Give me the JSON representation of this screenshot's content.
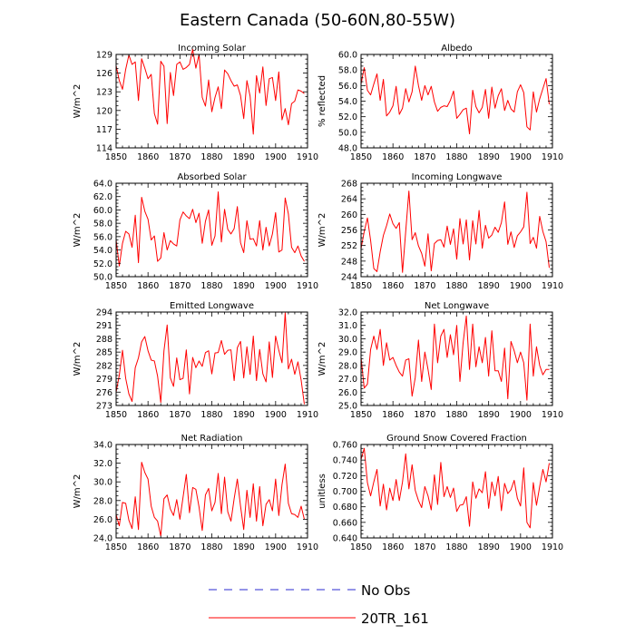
{
  "figure_title": "Eastern Canada (50-60N,80-55W)",
  "colors": {
    "model": "#ff0000",
    "obs": "#2a2ad0",
    "axis": "#000000"
  },
  "legend": [
    {
      "label": "No Obs",
      "style": "dashed",
      "color": "#2a2ad0"
    },
    {
      "label": "20TR_161",
      "style": "solid",
      "color": "#ff0000"
    }
  ],
  "chart_data": [
    {
      "type": "line",
      "title": "Incoming Solar",
      "ylabel": "W/m^2",
      "xlabel": "",
      "xlim": [
        1850,
        1910
      ],
      "ylim": [
        114,
        129
      ],
      "xticks": [
        1850,
        1860,
        1870,
        1880,
        1890,
        1900,
        1910
      ],
      "yticks": [
        114,
        117,
        120,
        123,
        126,
        129
      ],
      "ytick_labels": [
        "114",
        "117",
        "120",
        "123",
        "126",
        "129"
      ],
      "series": [
        {
          "name": "20TR_161",
          "x_start": 1850,
          "values": [
            127.2,
            124.8,
            123.4,
            126.6,
            128.9,
            127.4,
            127.8,
            121.6,
            128.3,
            126.8,
            125.1,
            125.8,
            119.5,
            117.8,
            127.9,
            127.1,
            117.9,
            126.1,
            122.4,
            127.4,
            127.8,
            126.6,
            126.9,
            127.4,
            129.8,
            126.8,
            129.0,
            122.1,
            120.7,
            124.9,
            119.8,
            122.1,
            123.8,
            120.3,
            126.5,
            125.9,
            124.8,
            123.9,
            124.1,
            122.4,
            118.7,
            124.8,
            122.3,
            116.2,
            125.6,
            122.8,
            127.0,
            120.8,
            125.1,
            125.3,
            121.6,
            126.2,
            118.5,
            120.3,
            117.7,
            121.1,
            121.5,
            123.3,
            123.1,
            122.7
          ]
        }
      ]
    },
    {
      "type": "line",
      "title": "Albedo",
      "ylabel": "% reflected",
      "xlabel": "",
      "xlim": [
        1850,
        1910
      ],
      "ylim": [
        48.0,
        60.0
      ],
      "xticks": [
        1850,
        1860,
        1870,
        1880,
        1890,
        1900,
        1910
      ],
      "yticks": [
        48,
        50,
        52,
        54,
        56,
        58,
        60
      ],
      "ytick_labels": [
        "48.0",
        "50.0",
        "52.0",
        "54.0",
        "56.0",
        "58.0",
        "60.0"
      ],
      "series": [
        {
          "name": "20TR_161",
          "x_start": 1850,
          "values": [
            56.2,
            58.3,
            55.4,
            54.8,
            56.2,
            57.5,
            54.1,
            56.8,
            52.1,
            52.6,
            53.4,
            55.9,
            52.3,
            53.1,
            55.6,
            53.9,
            55.2,
            58.5,
            56.0,
            54.1,
            56.0,
            54.8,
            55.9,
            53.9,
            52.7,
            53.2,
            53.4,
            53.3,
            54.1,
            55.3,
            51.8,
            52.3,
            52.9,
            53.1,
            49.8,
            55.4,
            53.3,
            52.5,
            53.2,
            55.5,
            51.8,
            55.8,
            53.1,
            54.7,
            55.6,
            52.8,
            54.1,
            53.0,
            52.6,
            55.2,
            56.1,
            55.1,
            50.7,
            50.3,
            55.2,
            52.6,
            54.3,
            55.6,
            56.9,
            53.6
          ]
        }
      ]
    },
    {
      "type": "line",
      "title": "Absorbed Solar",
      "ylabel": "W/m^2",
      "xlabel": "",
      "xlim": [
        1850,
        1910
      ],
      "ylim": [
        50.0,
        64.0
      ],
      "xticks": [
        1850,
        1860,
        1870,
        1880,
        1890,
        1900,
        1910
      ],
      "yticks": [
        50,
        52,
        54,
        56,
        58,
        60,
        62,
        64
      ],
      "ytick_labels": [
        "50.0",
        "52.0",
        "54.0",
        "56.0",
        "58.0",
        "60.0",
        "62.0",
        "64.0"
      ],
      "series": [
        {
          "name": "20TR_161",
          "x_start": 1850,
          "values": [
            55.5,
            51.6,
            55.0,
            56.8,
            56.4,
            54.4,
            59.2,
            52.1,
            61.9,
            59.8,
            58.6,
            55.5,
            56.1,
            52.3,
            52.8,
            56.6,
            54.0,
            55.4,
            54.9,
            54.6,
            58.5,
            59.7,
            59.1,
            58.7,
            60.1,
            58.1,
            59.5,
            55.0,
            58.3,
            60.0,
            54.7,
            56.1,
            62.7,
            55.2,
            60.1,
            57.1,
            56.4,
            57.2,
            60.5,
            55.1,
            53.6,
            58.4,
            55.6,
            55.7,
            54.6,
            58.4,
            54.0,
            57.4,
            54.6,
            56.4,
            59.6,
            53.7,
            54.0,
            61.8,
            59.4,
            54.4,
            53.6,
            54.6,
            53.1,
            52.3
          ]
        }
      ]
    },
    {
      "type": "line",
      "title": "Incoming Longwave",
      "ylabel": "W/m^2",
      "xlabel": "",
      "xlim": [
        1850,
        1910
      ],
      "ylim": [
        244,
        268
      ],
      "xticks": [
        1850,
        1860,
        1870,
        1880,
        1890,
        1900,
        1910
      ],
      "yticks": [
        244,
        248,
        252,
        256,
        260,
        264,
        268
      ],
      "ytick_labels": [
        "244",
        "248",
        "252",
        "256",
        "260",
        "264",
        "268"
      ],
      "series": [
        {
          "name": "20TR_161",
          "x_start": 1850,
          "values": [
            251.2,
            255.6,
            259.1,
            253.3,
            246.1,
            245.3,
            250.4,
            254.6,
            257.1,
            260.1,
            257.6,
            256.4,
            257.9,
            245.1,
            255.6,
            266.0,
            253.5,
            255.3,
            251.9,
            250.0,
            246.7,
            255.0,
            245.5,
            252.5,
            253.3,
            253.5,
            251.6,
            257.0,
            252.3,
            256.3,
            248.5,
            258.9,
            252.4,
            258.6,
            248.3,
            258.4,
            252.4,
            261.0,
            251.3,
            257.2,
            253.9,
            254.7,
            256.7,
            255.4,
            257.9,
            263.2,
            252.3,
            255.5,
            251.5,
            254.5,
            255.5,
            256.8,
            265.7,
            252.5,
            254.1,
            251.3,
            259.5,
            255.6,
            253.0,
            246.3
          ]
        }
      ]
    },
    {
      "type": "line",
      "title": "Emitted Longwave",
      "ylabel": "W/m^2",
      "xlabel": "",
      "xlim": [
        1850,
        1910
      ],
      "ylim": [
        273,
        294
      ],
      "xticks": [
        1850,
        1860,
        1870,
        1880,
        1890,
        1900,
        1910
      ],
      "yticks": [
        273,
        276,
        279,
        282,
        285,
        288,
        291,
        294
      ],
      "ytick_labels": [
        "273",
        "276",
        "279",
        "282",
        "285",
        "288",
        "291",
        "294"
      ],
      "series": [
        {
          "name": "20TR_161",
          "x_start": 1850,
          "values": [
            276.0,
            279.8,
            285.4,
            279.1,
            275.6,
            273.9,
            281.5,
            283.7,
            287.3,
            288.5,
            285.3,
            283.2,
            283.0,
            279.6,
            273.7,
            285.3,
            291.1,
            279.2,
            277.3,
            283.7,
            278.8,
            279.1,
            285.5,
            275.6,
            283.8,
            281.5,
            283.0,
            281.8,
            284.9,
            285.3,
            280.1,
            284.8,
            284.9,
            287.6,
            284.5,
            285.4,
            285.5,
            278.6,
            286.0,
            287.4,
            279.2,
            286.2,
            280.0,
            288.6,
            278.6,
            285.6,
            280.1,
            278.3,
            287.3,
            279.3,
            288.6,
            285.4,
            282.6,
            293.8,
            281.2,
            283.4,
            280.0,
            282.8,
            278.7,
            273.3
          ]
        }
      ]
    },
    {
      "type": "line",
      "title": "Net Longwave",
      "ylabel": "W/m^2",
      "xlabel": "",
      "xlim": [
        1850,
        1910
      ],
      "ylim": [
        25.0,
        32.0
      ],
      "xticks": [
        1850,
        1860,
        1870,
        1880,
        1890,
        1900,
        1910
      ],
      "yticks": [
        25,
        26,
        27,
        28,
        29,
        30,
        31,
        32
      ],
      "ytick_labels": [
        "25.0",
        "26.0",
        "27.0",
        "28.0",
        "29.0",
        "30.0",
        "31.0",
        "32.0"
      ],
      "series": [
        {
          "name": "20TR_161",
          "x_start": 1850,
          "values": [
            28.6,
            26.3,
            26.6,
            29.2,
            30.2,
            29.2,
            30.7,
            28.0,
            29.7,
            28.4,
            28.6,
            28.0,
            27.5,
            27.2,
            28.4,
            28.5,
            25.7,
            27.1,
            29.9,
            26.8,
            29.0,
            27.7,
            26.2,
            31.1,
            28.2,
            30.2,
            30.7,
            28.6,
            30.3,
            28.8,
            31.0,
            26.8,
            29.7,
            31.7,
            27.7,
            31.1,
            27.9,
            29.4,
            28.2,
            30.1,
            27.2,
            30.6,
            27.6,
            27.6,
            26.8,
            29.3,
            25.5,
            29.8,
            29.1,
            28.2,
            29.0,
            28.2,
            25.4,
            31.1,
            27.2,
            29.4,
            28.0,
            27.3,
            27.7,
            27.7
          ]
        }
      ]
    },
    {
      "type": "line",
      "title": "Net Radiation",
      "ylabel": "W/m^2",
      "xlabel": "",
      "xlim": [
        1850,
        1910
      ],
      "ylim": [
        24.0,
        34.0
      ],
      "xticks": [
        1850,
        1860,
        1870,
        1880,
        1890,
        1900,
        1910
      ],
      "yticks": [
        24,
        26,
        28,
        30,
        32,
        34
      ],
      "ytick_labels": [
        "24.0",
        "26.0",
        "28.0",
        "30.0",
        "32.0",
        "34.0"
      ],
      "series": [
        {
          "name": "20TR_161",
          "x_start": 1850,
          "values": [
            26.5,
            25.3,
            27.8,
            27.7,
            25.9,
            25.0,
            28.4,
            24.9,
            32.1,
            31.0,
            30.3,
            27.4,
            26.2,
            25.8,
            24.2,
            28.2,
            28.6,
            27.1,
            26.4,
            28.1,
            26.0,
            28.4,
            30.8,
            26.7,
            29.4,
            29.2,
            27.3,
            24.8,
            28.6,
            29.3,
            26.9,
            27.8,
            30.9,
            26.6,
            30.5,
            26.8,
            25.8,
            28.2,
            30.3,
            27.4,
            24.9,
            29.1,
            26.2,
            29.8,
            25.8,
            29.5,
            25.3,
            27.6,
            28.1,
            26.9,
            30.3,
            26.4,
            29.7,
            31.9,
            27.7,
            26.6,
            26.5,
            26.2,
            27.4,
            26.0
          ]
        }
      ]
    },
    {
      "type": "line",
      "title": "Ground Snow Covered Fraction",
      "ylabel": "unitless",
      "xlabel": "",
      "xlim": [
        1850,
        1910
      ],
      "ylim": [
        0.64,
        0.76
      ],
      "xticks": [
        1850,
        1860,
        1870,
        1880,
        1890,
        1900,
        1910
      ],
      "yticks": [
        0.64,
        0.66,
        0.68,
        0.7,
        0.72,
        0.74,
        0.76
      ],
      "ytick_labels": [
        "0.640",
        "0.660",
        "0.680",
        "0.700",
        "0.720",
        "0.740",
        "0.760"
      ],
      "series": [
        {
          "name": "20TR_161",
          "x_start": 1850,
          "values": [
            0.741,
            0.755,
            0.711,
            0.694,
            0.712,
            0.728,
            0.681,
            0.709,
            0.676,
            0.704,
            0.688,
            0.715,
            0.688,
            0.712,
            0.748,
            0.703,
            0.734,
            0.701,
            0.688,
            0.679,
            0.706,
            0.694,
            0.676,
            0.721,
            0.683,
            0.737,
            0.693,
            0.706,
            0.692,
            0.704,
            0.674,
            0.682,
            0.683,
            0.693,
            0.655,
            0.712,
            0.691,
            0.703,
            0.698,
            0.725,
            0.678,
            0.712,
            0.694,
            0.719,
            0.675,
            0.71,
            0.697,
            0.702,
            0.714,
            0.691,
            0.681,
            0.73,
            0.66,
            0.653,
            0.711,
            0.682,
            0.706,
            0.728,
            0.712,
            0.736
          ]
        }
      ]
    }
  ]
}
